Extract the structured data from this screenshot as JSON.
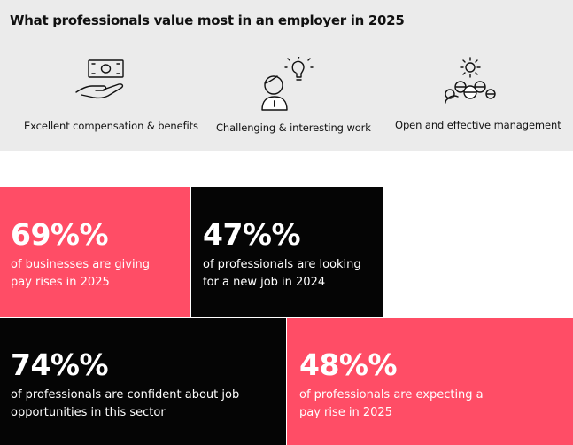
{
  "title": "What professionals value most in an employer in 2025",
  "values": [
    {
      "icon": "money-hand-icon",
      "label": "Excellent compensation & benefits"
    },
    {
      "icon": "person-idea-icon",
      "label": "Challenging & interesting work"
    },
    {
      "icon": "team-gear-icon",
      "label": "Open and effective management"
    }
  ],
  "stats": [
    {
      "pct": "69%%",
      "line1": "of businesses are giving",
      "line2": "pay rises in 2025"
    },
    {
      "pct": "47%%",
      "line1": "of professionals are looking",
      "line2": "for a new job in 2024"
    },
    {
      "pct": "74%%",
      "line1": "of professionals are confident about job",
      "line2": "opportunities in this sector"
    },
    {
      "pct": "48%%",
      "line1": "of professionals are expecting a",
      "line2": "pay rise in 2025"
    }
  ],
  "colors": {
    "pink": "#ff4d66",
    "black": "#050505",
    "panel": "#ebebeb"
  }
}
